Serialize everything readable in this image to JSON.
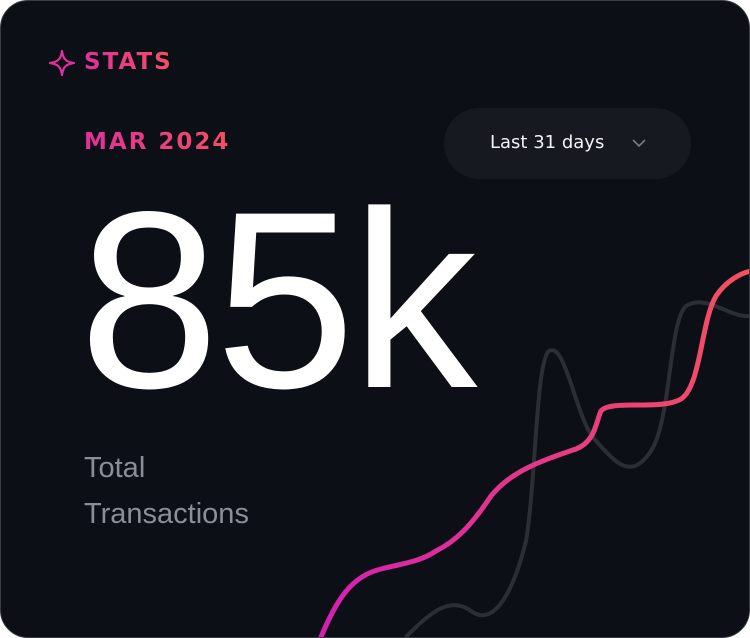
{
  "card": {
    "label": "STATS",
    "period": "MAR 2024",
    "range_selector": "Last 31 days",
    "metric": {
      "value": "85k",
      "caption": "Total Transactions"
    }
  }
}
